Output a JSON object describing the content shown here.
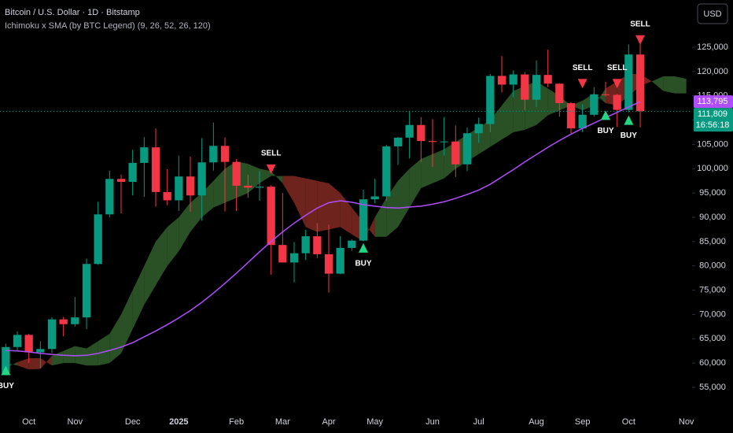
{
  "chart_data": {
    "type": "candlestick",
    "title": "Bitcoin / U.S. Dollar · 1D · Bitstamp",
    "subtitle": "Ichimoku x SMA (by BTC Legend) (9, 26, 52, 26, 120)",
    "currency_button": "USD",
    "categories": [
      null,
      null,
      "Oct",
      null,
      null,
      null,
      "Nov",
      null,
      null,
      null,
      null,
      "Dec",
      null,
      null,
      null,
      "2025",
      null,
      null,
      null,
      null,
      "Feb",
      null,
      null,
      null,
      "Mar",
      null,
      null,
      null,
      "Apr",
      null,
      null,
      null,
      "May",
      null,
      null,
      null,
      null,
      "Jun",
      null,
      null,
      null,
      "Jul",
      null,
      null,
      null,
      null,
      "Aug",
      null,
      null,
      null,
      "Sep",
      null,
      null,
      null,
      "Oct",
      null,
      null,
      null,
      null,
      "Nov"
    ],
    "open": [
      58000,
      63300,
      65800,
      62200,
      62900,
      69000,
      68000,
      69400,
      80400,
      90600,
      97900,
      97300,
      101200,
      104400,
      95200,
      93500,
      98400,
      94500,
      101300,
      104700,
      101400,
      96500,
      96100,
      96300,
      84300,
      80700,
      82600,
      86100,
      82400,
      78400,
      83700,
      85200,
      93700,
      94300,
      104600,
      106400,
      109000,
      105700,
      105500,
      105600,
      100900,
      107300,
      109200,
      119100,
      117300,
      119400,
      114200,
      119300,
      117500,
      113500,
      108300,
      111100,
      115300,
      115200,
      112100,
      123500,
      null,
      null,
      null,
      null
    ],
    "high": [
      64000,
      66500,
      66000,
      64500,
      69400,
      69500,
      73600,
      81500,
      93200,
      99600,
      98800,
      103900,
      106500,
      108300,
      99900,
      102700,
      102500,
      106300,
      109500,
      106400,
      102000,
      98800,
      99500,
      96600,
      95000,
      84900,
      87400,
      88800,
      88500,
      86100,
      85500,
      95700,
      97900,
      104900,
      106500,
      111900,
      110600,
      110200,
      110600,
      108900,
      108500,
      110500,
      119500,
      123200,
      120200,
      119900,
      122300,
      124500,
      117600,
      113700,
      113300,
      116800,
      117900,
      115400,
      125600,
      126200,
      null,
      null,
      null,
      null
    ],
    "low": [
      57500,
      62500,
      60000,
      58900,
      62100,
      65500,
      67500,
      67000,
      80200,
      90000,
      90800,
      94500,
      94200,
      92200,
      92500,
      91300,
      91200,
      89300,
      99600,
      91200,
      91300,
      94000,
      93400,
      78200,
      81500,
      76600,
      81200,
      81600,
      74500,
      78300,
      83100,
      85100,
      92900,
      93400,
      100800,
      102100,
      101400,
      100400,
      102700,
      98300,
      99500,
      105300,
      107500,
      115700,
      114700,
      112000,
      112700,
      116800,
      110700,
      107300,
      107500,
      110700,
      114900,
      108600,
      111600,
      108500,
      null,
      null,
      null,
      null
    ],
    "close": [
      63300,
      65800,
      62200,
      62900,
      69000,
      68000,
      69400,
      80400,
      90600,
      97900,
      97300,
      101200,
      104400,
      95200,
      93500,
      98400,
      94500,
      101300,
      104700,
      101400,
      96500,
      96100,
      96300,
      84300,
      80700,
      82600,
      86100,
      82400,
      78400,
      83700,
      85200,
      93700,
      94300,
      104600,
      106400,
      109000,
      105700,
      105500,
      105600,
      100900,
      107300,
      109200,
      119100,
      117300,
      119400,
      114200,
      119300,
      117500,
      113500,
      108300,
      111100,
      115300,
      115200,
      112100,
      123500,
      111809,
      null,
      null,
      null,
      null
    ],
    "up_color": "#089981",
    "down_color": "#f23645",
    "sma": {
      "color": "#b04dff",
      "values": [
        62600,
        62500,
        62300,
        62000,
        61800,
        61600,
        61500,
        61600,
        62000,
        62600,
        63300,
        64200,
        65400,
        66600,
        67900,
        69300,
        70800,
        72500,
        74400,
        76400,
        78500,
        80700,
        82900,
        85000,
        87000,
        88800,
        90400,
        91900,
        93000,
        93400,
        93100,
        92600,
        92300,
        92000,
        91900,
        92100,
        92300,
        92700,
        93200,
        93900,
        94700,
        95600,
        96800,
        98300,
        99800,
        101400,
        102900,
        104400,
        105800,
        107100,
        108300,
        109400,
        110500,
        111600,
        112700,
        113795,
        null,
        null,
        null,
        null
      ]
    },
    "cloud": {
      "up_color": "#2f5a2a",
      "down_color": "#7a271f",
      "span_a": [
        60000,
        59500,
        58700,
        58800,
        61500,
        62500,
        63500,
        63000,
        64500,
        66000,
        70000,
        75000,
        80000,
        85000,
        88000,
        90000,
        93000,
        95000,
        97500,
        100000,
        101500,
        101000,
        100000,
        99500,
        97000,
        93000,
        88000,
        87000,
        87500,
        88000,
        86500,
        85000,
        90000,
        94000,
        97500,
        100000,
        102000,
        103000,
        104000,
        105500,
        107000,
        108500,
        110000,
        113000,
        116000,
        117000,
        118000,
        116500,
        115000,
        113000,
        114000,
        115500,
        113500,
        113000,
        115000,
        117000,
        118000,
        119000,
        119000,
        118500
      ],
      "span_b": [
        59000,
        60200,
        61000,
        61000,
        59500,
        60000,
        60000,
        59500,
        59500,
        60000,
        62000,
        67000,
        72000,
        76000,
        80000,
        83000,
        87000,
        90000,
        92000,
        93000,
        94000,
        95000,
        97000,
        98500,
        98500,
        98500,
        98000,
        97500,
        97000,
        95000,
        92000,
        89000,
        86000,
        86000,
        88000,
        92000,
        96000,
        97000,
        98000,
        100000,
        101500,
        103000,
        104500,
        106000,
        107500,
        108000,
        109000,
        111000,
        112000,
        113000,
        112000,
        113000,
        116500,
        118000,
        119500,
        119500,
        118000,
        116000,
        115500,
        115500
      ]
    },
    "buy_signals": {
      "label": "BUY",
      "color": "#22d684",
      "values": [
        58500,
        null,
        null,
        null,
        null,
        null,
        null,
        null,
        null,
        null,
        null,
        null,
        null,
        null,
        null,
        null,
        null,
        null,
        null,
        null,
        null,
        null,
        null,
        null,
        null,
        null,
        null,
        null,
        null,
        null,
        null,
        83700,
        null,
        null,
        null,
        null,
        null,
        null,
        null,
        null,
        null,
        null,
        null,
        null,
        null,
        null,
        null,
        null,
        null,
        null,
        null,
        null,
        111000,
        null,
        110000,
        null,
        null,
        null,
        null,
        null
      ]
    },
    "sell_signals": {
      "label": "SELL",
      "color": "#f23645",
      "values": [
        null,
        null,
        null,
        null,
        null,
        null,
        null,
        null,
        null,
        null,
        null,
        null,
        null,
        null,
        null,
        null,
        null,
        null,
        null,
        null,
        null,
        null,
        null,
        99900,
        null,
        null,
        null,
        null,
        null,
        null,
        null,
        null,
        null,
        null,
        null,
        null,
        null,
        null,
        null,
        null,
        null,
        null,
        null,
        null,
        null,
        null,
        null,
        null,
        null,
        null,
        117500,
        null,
        null,
        117500,
        null,
        126500,
        null,
        null,
        null,
        null
      ]
    },
    "sma_label": {
      "value": 113795,
      "label": "113,795"
    },
    "last_price": {
      "value": 111809,
      "label": "111,809"
    },
    "countdown": "16:56:18",
    "ylim": [
      50470,
      134720
    ],
    "yticks": [
      {
        "value": 55000,
        "label": "55,000"
      },
      {
        "value": 60000,
        "label": "60,000"
      },
      {
        "value": 65000,
        "label": "65,000"
      },
      {
        "value": 70000,
        "label": "70,000"
      },
      {
        "value": 75000,
        "label": "75,000"
      },
      {
        "value": 80000,
        "label": "80,000"
      },
      {
        "value": 85000,
        "label": "85,000"
      },
      {
        "value": 90000,
        "label": "90,000"
      },
      {
        "value": 95000,
        "label": "95,000"
      },
      {
        "value": 100000,
        "label": "100,000"
      },
      {
        "value": 105000,
        "label": "105,000"
      },
      {
        "value": 110000,
        "label": "110,000"
      },
      {
        "value": 115000,
        "label": "115,000"
      },
      {
        "value": 120000,
        "label": "120,000"
      },
      {
        "value": 125000,
        "label": "125,000"
      }
    ]
  }
}
